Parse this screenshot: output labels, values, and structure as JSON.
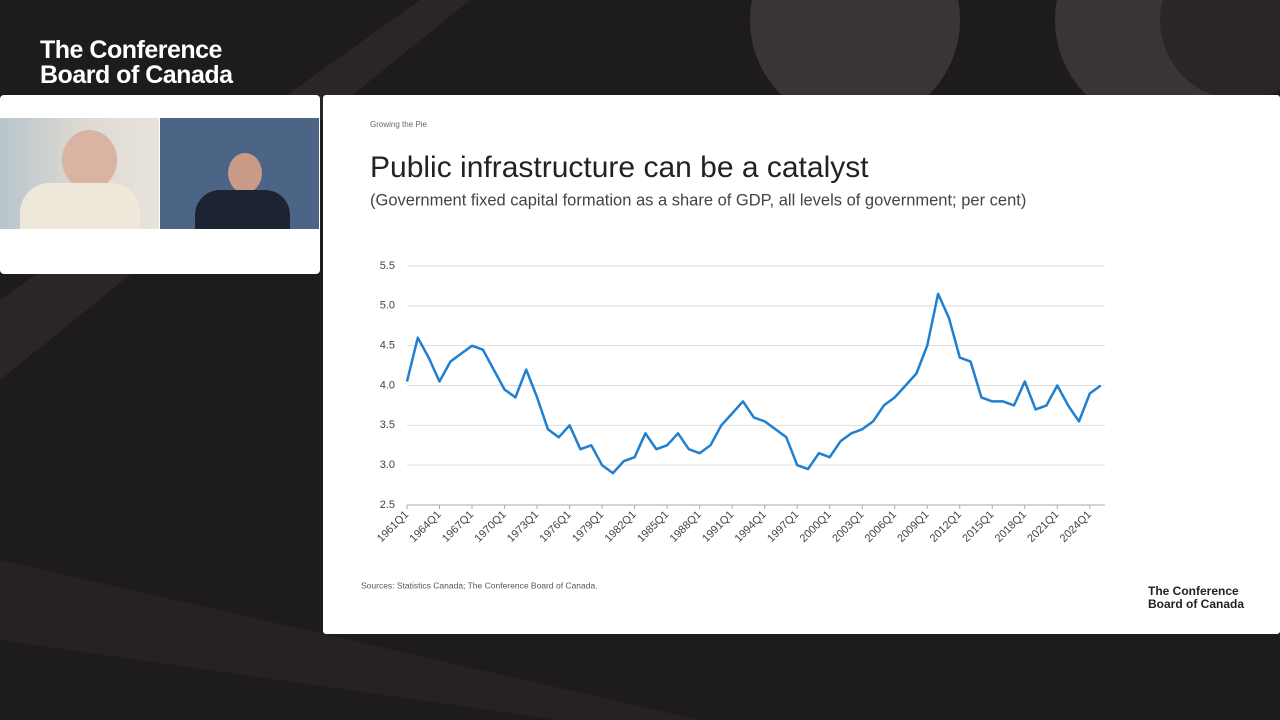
{
  "header": {
    "logo": [
      "The Conference",
      "Board of Canada"
    ]
  },
  "slide": {
    "kicker": "Growing the Pie",
    "source": "Sources: Statistics Canada; The Conference Board of Canada.",
    "logo": [
      "The Conference",
      "Board of Canada"
    ]
  },
  "chart_data": {
    "type": "line",
    "title": "Public infrastructure can be a catalyst",
    "subtitle": "(Government fixed capital formation as a share of GDP, all levels of government; per cent)",
    "categories": [
      "1961Q1",
      null,
      null,
      "1964Q1",
      null,
      null,
      "1967Q1",
      null,
      null,
      "1970Q1",
      null,
      null,
      "1973Q1",
      null,
      null,
      "1976Q1",
      null,
      null,
      "1979Q1",
      null,
      null,
      "1982Q1",
      null,
      null,
      "1985Q1",
      null,
      null,
      "1988Q1",
      null,
      null,
      "1991Q1",
      null,
      null,
      "1994Q1",
      null,
      null,
      "1997Q1",
      null,
      null,
      "2000Q1",
      null,
      null,
      "2003Q1",
      null,
      null,
      "2006Q1",
      null,
      null,
      "2009Q1",
      null,
      null,
      "2012Q1",
      null,
      null,
      "2015Q1",
      null,
      null,
      "2018Q1",
      null,
      null,
      "2021Q1",
      null,
      null,
      "2024Q1",
      null
    ],
    "values": [
      4.05,
      4.6,
      4.35,
      4.05,
      4.3,
      4.4,
      4.5,
      4.45,
      4.2,
      3.95,
      3.85,
      4.2,
      3.85,
      3.45,
      3.35,
      3.5,
      3.2,
      3.25,
      3.0,
      2.9,
      3.05,
      3.1,
      3.4,
      3.2,
      3.25,
      3.4,
      3.2,
      3.15,
      3.25,
      3.5,
      3.65,
      3.8,
      3.6,
      3.55,
      3.45,
      3.35,
      3.0,
      2.95,
      3.15,
      3.1,
      3.3,
      3.4,
      3.45,
      3.55,
      3.75,
      3.85,
      4.0,
      4.15,
      4.5,
      5.15,
      4.85,
      4.35,
      4.3,
      3.85,
      3.8,
      3.8,
      3.75,
      4.05,
      3.7,
      3.75,
      4.0,
      3.75,
      3.55,
      3.9,
      4.0
    ],
    "color": "#1f7fd0",
    "ylim": [
      2.5,
      5.5
    ],
    "yticks": [
      2.5,
      {
        "value": 3,
        "label": "3.0"
      },
      3.5,
      {
        "value": 4,
        "label": "4.0"
      },
      4.5,
      {
        "value": 5,
        "label": "5.0"
      },
      5.5
    ],
    "grid": true
  }
}
